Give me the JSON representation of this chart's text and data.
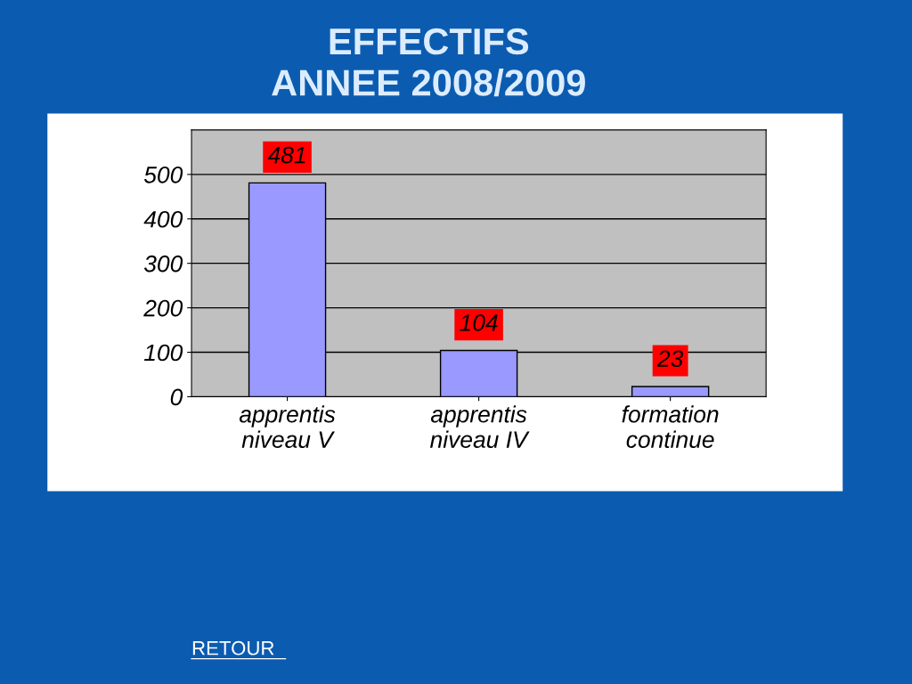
{
  "chart_data": {
    "type": "bar",
    "title": "EFFECTIFS\nANNEE 2008/2009",
    "categories": [
      "apprentis\nniveau V",
      "apprentis\nniveau IV",
      "formation\ncontinue"
    ],
    "values": [
      481,
      104,
      23
    ],
    "color": "#9999ff",
    "ylim": [
      0,
      600
    ],
    "yticks": [
      0,
      100,
      200,
      300,
      400,
      500
    ],
    "grid": "y",
    "data_labels": true,
    "annotations": [
      "RETOUR"
    ]
  }
}
